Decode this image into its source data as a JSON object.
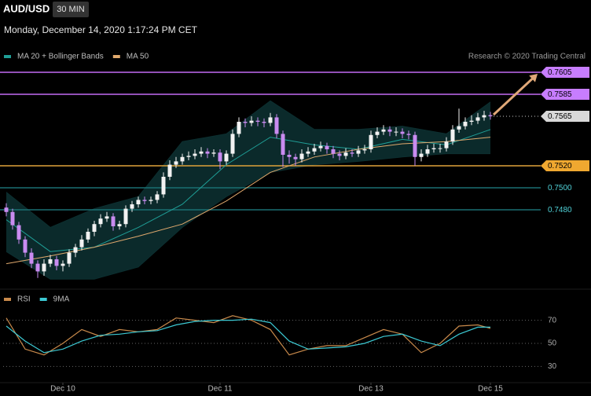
{
  "header": {
    "symbol": "AUD/USD",
    "interval": "30 MIN",
    "datetime": "Monday, December 14, 2020 1:17:24 PM CET"
  },
  "chart_data": [
    {
      "type": "candlestick",
      "source": "Research © 2020 Trading Central",
      "xlim": [
        -0.5,
        77.5
      ],
      "ylim": [
        0.741,
        0.7615
      ],
      "candles": {
        "up_color": "#f2f2f2",
        "down_color": "#c98bf0",
        "ohlc": [
          [
            0.7482,
            0.7486,
            0.7474,
            0.7478
          ],
          [
            0.7478,
            0.7481,
            0.7462,
            0.7466
          ],
          [
            0.7466,
            0.7469,
            0.7449,
            0.7453
          ],
          [
            0.7453,
            0.7456,
            0.7437,
            0.7441
          ],
          [
            0.7441,
            0.7445,
            0.7427,
            0.7431
          ],
          [
            0.7431,
            0.7434,
            0.7418,
            0.7424
          ],
          [
            0.7424,
            0.7435,
            0.742,
            0.7431
          ],
          [
            0.7431,
            0.7439,
            0.7428,
            0.7435
          ],
          [
            0.7435,
            0.7438,
            0.7425,
            0.7429
          ],
          [
            0.7429,
            0.7434,
            0.7424,
            0.7431
          ],
          [
            0.7431,
            0.7444,
            0.7428,
            0.7441
          ],
          [
            0.7441,
            0.7449,
            0.7437,
            0.7446
          ],
          [
            0.7446,
            0.7457,
            0.7443,
            0.7453
          ],
          [
            0.7453,
            0.7463,
            0.745,
            0.746
          ],
          [
            0.746,
            0.747,
            0.7456,
            0.7467
          ],
          [
            0.7467,
            0.7476,
            0.7464,
            0.7472
          ],
          [
            0.7472,
            0.7478,
            0.7469,
            0.7474
          ],
          [
            0.7474,
            0.7477,
            0.7461,
            0.7465
          ],
          [
            0.7465,
            0.747,
            0.7462,
            0.7467
          ],
          [
            0.7467,
            0.7484,
            0.7464,
            0.7481
          ],
          [
            0.7481,
            0.7488,
            0.7478,
            0.7485
          ],
          [
            0.7485,
            0.7492,
            0.7482,
            0.7489
          ],
          [
            0.7489,
            0.7492,
            0.7485,
            0.7488
          ],
          [
            0.7488,
            0.7492,
            0.7485,
            0.7489
          ],
          [
            0.7489,
            0.7497,
            0.7486,
            0.7494
          ],
          [
            0.7494,
            0.7514,
            0.7491,
            0.751
          ],
          [
            0.751,
            0.7525,
            0.7507,
            0.7521
          ],
          [
            0.7521,
            0.7528,
            0.7518,
            0.7524
          ],
          [
            0.7524,
            0.7531,
            0.7521,
            0.7528
          ],
          [
            0.7528,
            0.7533,
            0.7525,
            0.7529
          ],
          [
            0.7529,
            0.7535,
            0.7526,
            0.7531
          ],
          [
            0.7531,
            0.7537,
            0.7528,
            0.7533
          ],
          [
            0.7533,
            0.7536,
            0.7527,
            0.7531
          ],
          [
            0.7531,
            0.7535,
            0.7528,
            0.7532
          ],
          [
            0.7532,
            0.7535,
            0.7517,
            0.7524
          ],
          [
            0.7524,
            0.7534,
            0.7521,
            0.7531
          ],
          [
            0.7531,
            0.7553,
            0.7528,
            0.7549
          ],
          [
            0.7549,
            0.7564,
            0.7546,
            0.756
          ],
          [
            0.756,
            0.7563,
            0.7555,
            0.7559
          ],
          [
            0.7559,
            0.7565,
            0.7556,
            0.7561
          ],
          [
            0.7561,
            0.7564,
            0.7556,
            0.756
          ],
          [
            0.756,
            0.7563,
            0.7555,
            0.7559
          ],
          [
            0.7559,
            0.7568,
            0.7556,
            0.7564
          ],
          [
            0.7564,
            0.7567,
            0.7545,
            0.7549
          ],
          [
            0.7549,
            0.7552,
            0.7519,
            0.753
          ],
          [
            0.753,
            0.7534,
            0.7522,
            0.7528
          ],
          [
            0.7528,
            0.7531,
            0.752,
            0.7526
          ],
          [
            0.7526,
            0.7535,
            0.7523,
            0.7531
          ],
          [
            0.7531,
            0.7537,
            0.7528,
            0.7533
          ],
          [
            0.7533,
            0.754,
            0.753,
            0.7536
          ],
          [
            0.7536,
            0.7542,
            0.7533,
            0.7538
          ],
          [
            0.7538,
            0.7541,
            0.7531,
            0.7535
          ],
          [
            0.7535,
            0.7538,
            0.7527,
            0.7531
          ],
          [
            0.7531,
            0.7534,
            0.7525,
            0.7529
          ],
          [
            0.7529,
            0.7536,
            0.7526,
            0.7532
          ],
          [
            0.7532,
            0.7535,
            0.7528,
            0.7531
          ],
          [
            0.7531,
            0.7538,
            0.7528,
            0.7534
          ],
          [
            0.7534,
            0.7539,
            0.7531,
            0.7535
          ],
          [
            0.7535,
            0.7552,
            0.7532,
            0.7548
          ],
          [
            0.7548,
            0.7555,
            0.7545,
            0.7551
          ],
          [
            0.7551,
            0.7557,
            0.7548,
            0.7553
          ],
          [
            0.7553,
            0.7556,
            0.7547,
            0.7551
          ],
          [
            0.7551,
            0.7555,
            0.7547,
            0.7551
          ],
          [
            0.7551,
            0.7554,
            0.7545,
            0.7549
          ],
          [
            0.7549,
            0.7552,
            0.7544,
            0.7548
          ],
          [
            0.7548,
            0.7551,
            0.752,
            0.7528
          ],
          [
            0.7528,
            0.7535,
            0.7524,
            0.7531
          ],
          [
            0.7531,
            0.7539,
            0.7528,
            0.7535
          ],
          [
            0.7535,
            0.754,
            0.7532,
            0.7536
          ],
          [
            0.7536,
            0.754,
            0.7532,
            0.7536
          ],
          [
            0.7536,
            0.7546,
            0.7533,
            0.7542
          ],
          [
            0.7542,
            0.7557,
            0.7539,
            0.7553
          ],
          [
            0.7553,
            0.7572,
            0.755,
            0.7556
          ],
          [
            0.7556,
            0.7564,
            0.7553,
            0.756
          ],
          [
            0.756,
            0.7566,
            0.7557,
            0.7561
          ],
          [
            0.7561,
            0.7568,
            0.7558,
            0.7564
          ],
          [
            0.7564,
            0.757,
            0.7561,
            0.7566
          ],
          [
            0.7566,
            0.7569,
            0.7562,
            0.7565
          ]
        ]
      },
      "series": [
        {
          "name": "MA 20 + Bollinger Bands",
          "color": "#1f9e96",
          "band_color": "#0c2f30",
          "x": [
            0,
            7,
            14,
            21,
            28,
            35,
            42,
            49,
            56,
            63,
            70,
            77
          ],
          "values": [
            0.7471,
            0.7442,
            0.7446,
            0.7464,
            0.7485,
            0.7521,
            0.7546,
            0.7539,
            0.7535,
            0.7544,
            0.7539,
            0.7553
          ],
          "upper": [
            0.7496,
            0.7464,
            0.7481,
            0.7492,
            0.7542,
            0.7549,
            0.7579,
            0.7553,
            0.7553,
            0.7556,
            0.7549,
            0.7578
          ],
          "lower": [
            0.7442,
            0.7417,
            0.7417,
            0.7428,
            0.7464,
            0.7492,
            0.7514,
            0.7521,
            0.7524,
            0.7528,
            0.7531,
            0.7531
          ]
        },
        {
          "name": "MA 50",
          "color": "#e0a96d",
          "x": [
            0,
            7,
            14,
            21,
            28,
            35,
            42,
            49,
            56,
            63,
            70,
            77
          ],
          "values": [
            0.7431,
            0.7438,
            0.7446,
            0.7456,
            0.7467,
            0.7488,
            0.7514,
            0.7528,
            0.7535,
            0.754,
            0.7542,
            0.7546
          ]
        }
      ],
      "levels": [
        {
          "value": 0.7605,
          "line_color": "#c36af2",
          "tag_color": "#c77dff",
          "text_color": "#000000",
          "line_style": "solid"
        },
        {
          "value": 0.7585,
          "line_color": "#c36af2",
          "tag_color": "#c77dff",
          "text_color": "#000000",
          "line_style": "solid"
        },
        {
          "value": 0.7565,
          "line_color": "#cccccc",
          "tag_color": "#d9d9d9",
          "text_color": "#000000",
          "line_style": "dotted"
        },
        {
          "value": 0.752,
          "label": "0.7520",
          "line_color": "#e0a23a",
          "tag_color": "#f0a830",
          "text_color": "#000000",
          "line_style": "solid"
        },
        {
          "value": 0.75,
          "label": "0.7500",
          "line_color": "#1b6f72",
          "text_color": "#4fd0d6",
          "line_style": "solid"
        },
        {
          "value": 0.748,
          "label": "0.7480",
          "line_color": "#1b6f72",
          "text_color": "#4fd0d6",
          "line_style": "solid"
        }
      ],
      "arrow_color": "#e0a878"
    },
    {
      "type": "line",
      "xlim": [
        -0.5,
        77.5
      ],
      "ylim": [
        18,
        82
      ],
      "yticks": [
        30,
        50,
        70
      ],
      "grid": true,
      "xticks": [
        {
          "value": 9,
          "label": "Dec 10"
        },
        {
          "value": 34,
          "label": "Dec 11"
        },
        {
          "value": 58,
          "label": "Dec 13"
        },
        {
          "value": 77,
          "label": "Dec 15"
        }
      ],
      "x": [
        0,
        3,
        6,
        9,
        12,
        15,
        18,
        21,
        24,
        27,
        30,
        33,
        36,
        39,
        42,
        45,
        48,
        51,
        54,
        57,
        60,
        63,
        66,
        69,
        72,
        75,
        77
      ],
      "series": [
        {
          "name": "RSI",
          "color": "#c98a4b",
          "values": [
            72,
            45,
            40,
            50,
            62,
            56,
            62,
            60,
            62,
            72,
            70,
            68,
            74,
            70,
            62,
            40,
            45,
            48,
            48,
            55,
            62,
            58,
            42,
            50,
            65,
            66,
            63
          ]
        },
        {
          "name": "9MA",
          "color": "#3cc9d3",
          "values": [
            65,
            52,
            42,
            45,
            52,
            57,
            58,
            60,
            61,
            66,
            69,
            70,
            70,
            71,
            68,
            52,
            45,
            46,
            47,
            50,
            56,
            58,
            52,
            48,
            58,
            64,
            64
          ]
        }
      ]
    }
  ]
}
